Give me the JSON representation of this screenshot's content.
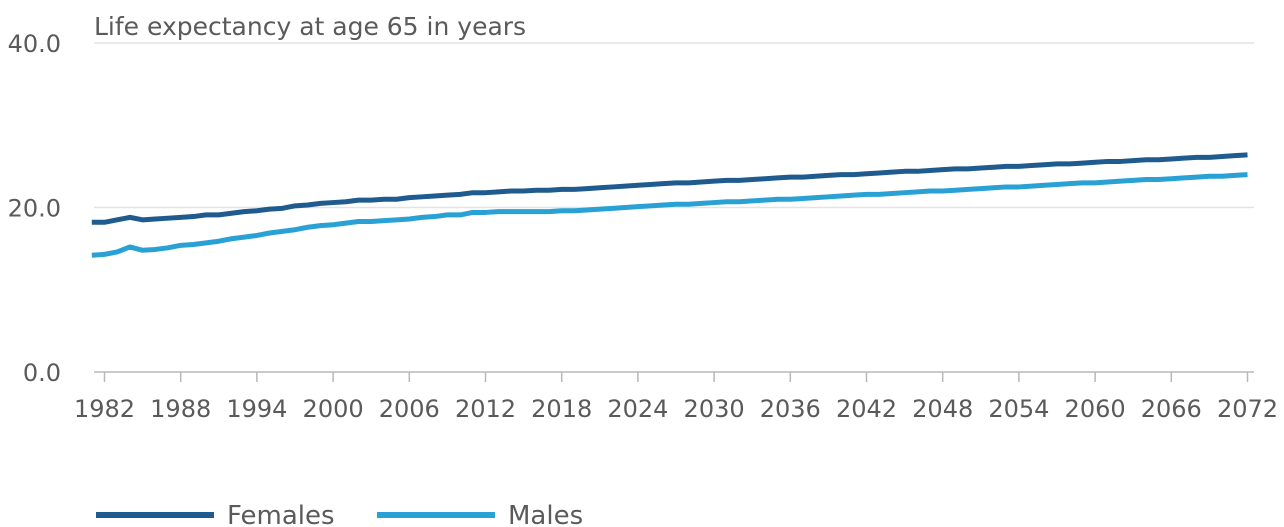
{
  "chart_data": {
    "type": "line",
    "ylabel": "Life expectancy at age 65 in years",
    "xlabel": "",
    "xlim": [
      1981,
      2072
    ],
    "ylim": [
      0,
      40
    ],
    "y_ticks": [
      "0.0",
      "20.0",
      "40.0"
    ],
    "x_ticks": [
      "1982",
      "1988",
      "1994",
      "2000",
      "2006",
      "2012",
      "2018",
      "2024",
      "2030",
      "2036",
      "2042",
      "2048",
      "2054",
      "2060",
      "2066",
      "2072"
    ],
    "grid": true,
    "legend_position": "bottom-left",
    "x": [
      1981,
      1982,
      1983,
      1984,
      1985,
      1986,
      1987,
      1988,
      1989,
      1990,
      1991,
      1992,
      1993,
      1994,
      1995,
      1996,
      1997,
      1998,
      1999,
      2000,
      2001,
      2002,
      2003,
      2004,
      2005,
      2006,
      2007,
      2008,
      2009,
      2010,
      2011,
      2012,
      2013,
      2014,
      2015,
      2016,
      2017,
      2018,
      2019,
      2020,
      2021,
      2022,
      2023,
      2024,
      2025,
      2026,
      2027,
      2028,
      2029,
      2030,
      2031,
      2032,
      2033,
      2034,
      2035,
      2036,
      2037,
      2038,
      2039,
      2040,
      2041,
      2042,
      2043,
      2044,
      2045,
      2046,
      2047,
      2048,
      2049,
      2050,
      2051,
      2052,
      2053,
      2054,
      2055,
      2056,
      2057,
      2058,
      2059,
      2060,
      2061,
      2062,
      2063,
      2064,
      2065,
      2066,
      2067,
      2068,
      2069,
      2070,
      2071,
      2072
    ],
    "series": [
      {
        "name": "Females",
        "color": "#1f5b8e",
        "values": [
          18.2,
          18.2,
          18.5,
          18.8,
          18.5,
          18.6,
          18.7,
          18.8,
          18.9,
          19.1,
          19.1,
          19.3,
          19.5,
          19.6,
          19.8,
          19.9,
          20.2,
          20.3,
          20.5,
          20.6,
          20.7,
          20.9,
          20.9,
          21.0,
          21.0,
          21.2,
          21.3,
          21.4,
          21.5,
          21.6,
          21.8,
          21.8,
          21.9,
          22.0,
          22.0,
          22.1,
          22.1,
          22.2,
          22.2,
          22.3,
          22.4,
          22.5,
          22.6,
          22.7,
          22.8,
          22.9,
          23.0,
          23.0,
          23.1,
          23.2,
          23.3,
          23.3,
          23.4,
          23.5,
          23.6,
          23.7,
          23.7,
          23.8,
          23.9,
          24.0,
          24.0,
          24.1,
          24.2,
          24.3,
          24.4,
          24.4,
          24.5,
          24.6,
          24.7,
          24.7,
          24.8,
          24.9,
          25.0,
          25.0,
          25.1,
          25.2,
          25.3,
          25.3,
          25.4,
          25.5,
          25.6,
          25.6,
          25.7,
          25.8,
          25.8,
          25.9,
          26.0,
          26.1,
          26.1,
          26.2,
          26.3,
          26.4
        ]
      },
      {
        "name": "Males",
        "color": "#2aa1d4",
        "values": [
          14.2,
          14.3,
          14.6,
          15.2,
          14.8,
          14.9,
          15.1,
          15.4,
          15.5,
          15.7,
          15.9,
          16.2,
          16.4,
          16.6,
          16.9,
          17.1,
          17.3,
          17.6,
          17.8,
          17.9,
          18.1,
          18.3,
          18.3,
          18.4,
          18.5,
          18.6,
          18.8,
          18.9,
          19.1,
          19.1,
          19.4,
          19.4,
          19.5,
          19.5,
          19.5,
          19.5,
          19.5,
          19.6,
          19.6,
          19.7,
          19.8,
          19.9,
          20.0,
          20.1,
          20.2,
          20.3,
          20.4,
          20.4,
          20.5,
          20.6,
          20.7,
          20.7,
          20.8,
          20.9,
          21.0,
          21.0,
          21.1,
          21.2,
          21.3,
          21.4,
          21.5,
          21.6,
          21.6,
          21.7,
          21.8,
          21.9,
          22.0,
          22.0,
          22.1,
          22.2,
          22.3,
          22.4,
          22.5,
          22.5,
          22.6,
          22.7,
          22.8,
          22.9,
          23.0,
          23.0,
          23.1,
          23.2,
          23.3,
          23.4,
          23.4,
          23.5,
          23.6,
          23.7,
          23.8,
          23.8,
          23.9,
          24.0
        ]
      }
    ]
  }
}
